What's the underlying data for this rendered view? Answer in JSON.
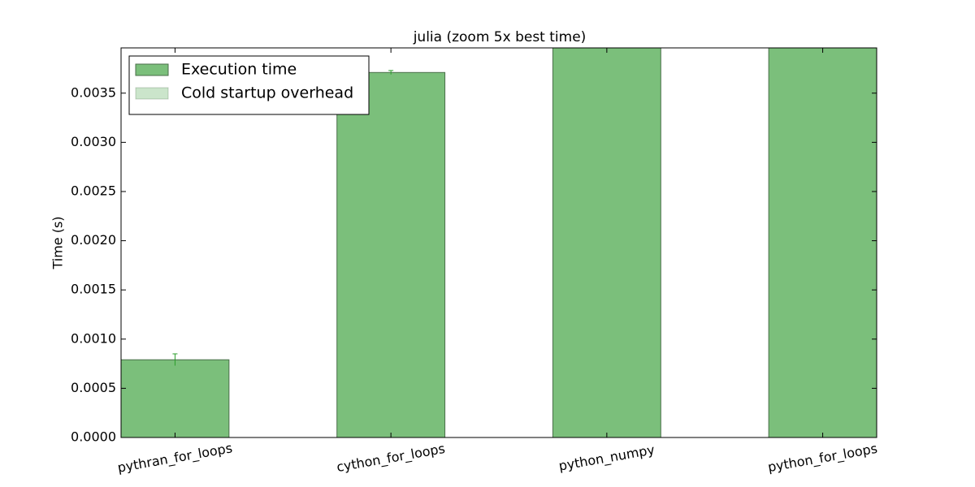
{
  "chart_data": {
    "type": "bar",
    "title": "julia (zoom 5x best time)",
    "y_label": "Time (s)",
    "categories": [
      "pythran_for_loops",
      "cython_for_loops",
      "python_numpy",
      "python_for_loops"
    ],
    "series": [
      {
        "name": "Execution time",
        "color": "#7bbf7b",
        "values": [
          0.00079,
          0.00371,
          0.004,
          0.004
        ],
        "errors": [
          6e-05,
          2e-05,
          null,
          null
        ]
      },
      {
        "name": "Cold startup overhead",
        "color": "#cbe5cb",
        "values": [
          0,
          0,
          0,
          0
        ]
      }
    ],
    "stacked": true,
    "ylim": [
      0,
      0.00396
    ],
    "yticks": [
      {
        "value": 0,
        "label": "0.0000"
      },
      {
        "value": 0.0005,
        "label": "0.0005"
      },
      {
        "value": 0.001,
        "label": "0.0010"
      },
      {
        "value": 0.0015,
        "label": "0.0015"
      },
      {
        "value": 0.002,
        "label": "0.0020"
      },
      {
        "value": 0.0025,
        "label": "0.0025"
      },
      {
        "value": 0.003,
        "label": "0.0030"
      },
      {
        "value": 0.0035,
        "label": "0.0035"
      }
    ],
    "grid": false,
    "legend": "upper left"
  }
}
